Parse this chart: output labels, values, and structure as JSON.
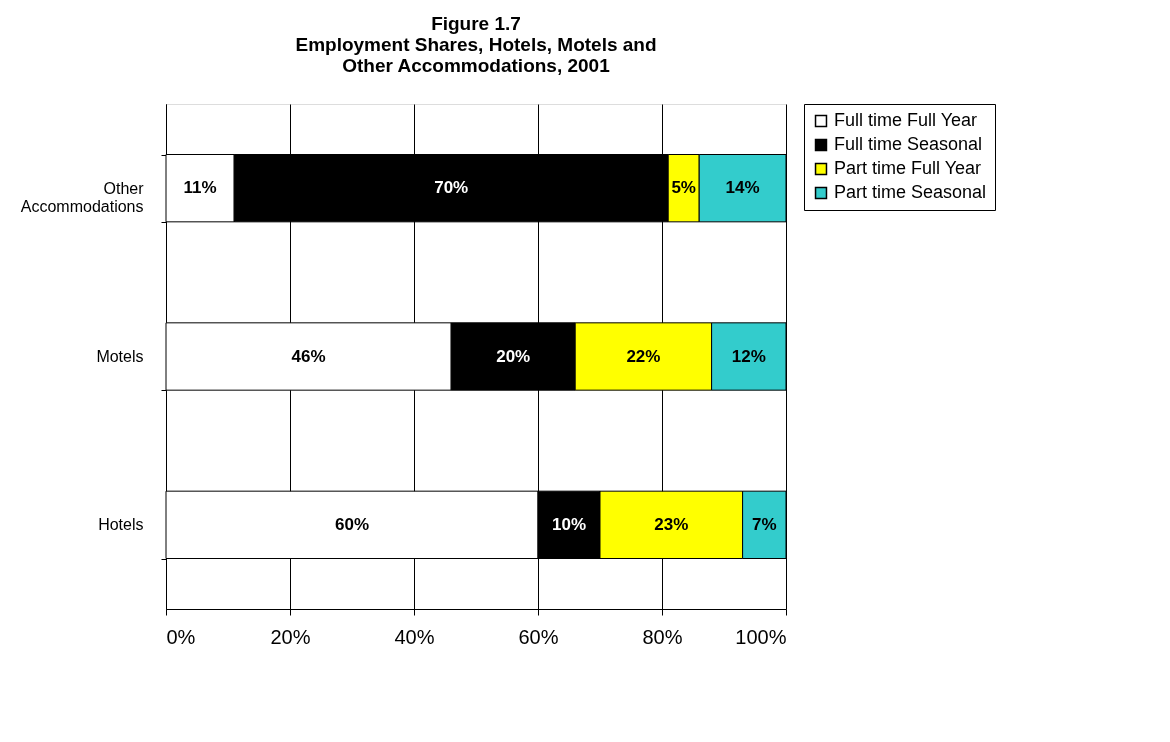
{
  "chart_data": {
    "type": "bar",
    "orientation": "horizontal",
    "stacked": true,
    "title": "Figure 1.7\nEmployment Shares, Hotels, Motels and\nOther Accommodations, 2001",
    "categories": [
      "Other Accommodations",
      "Motels",
      "Hotels"
    ],
    "series": [
      {
        "name": "Full time Full Year",
        "color": "#ffffff",
        "values": [
          11,
          46,
          60
        ],
        "value_labels": [
          "11%",
          "46%",
          "60%"
        ]
      },
      {
        "name": "Full time Seasonal",
        "color": "#000000",
        "values": [
          70,
          20,
          10
        ],
        "value_labels": [
          "70%",
          "20%",
          "10%"
        ]
      },
      {
        "name": "Part time Full Year",
        "color": "#ffff00",
        "values": [
          5,
          22,
          23
        ],
        "value_labels": [
          "5%",
          "22%",
          "23%"
        ]
      },
      {
        "name": "Part time Seasonal",
        "color": "#33cccc",
        "values": [
          14,
          12,
          7
        ],
        "value_labels": [
          "14%",
          "12%",
          "7%"
        ]
      }
    ],
    "xlim": [
      0,
      100
    ],
    "xticks": [
      {
        "value": 0,
        "label": "0%"
      },
      {
        "value": 20,
        "label": "20%"
      },
      {
        "value": 40,
        "label": "40%"
      },
      {
        "value": 60,
        "label": "60%"
      },
      {
        "value": 80,
        "label": "80%"
      },
      {
        "value": 100,
        "label": "100%"
      }
    ],
    "grid": "x",
    "legend": "right"
  }
}
